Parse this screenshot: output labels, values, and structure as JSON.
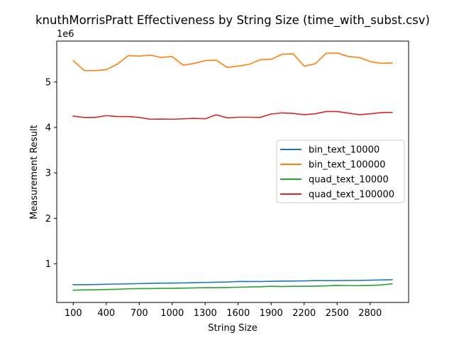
{
  "chart_data": {
    "type": "line",
    "title": "knuthMorrisPratt Effectiveness by String Size (time_with_subst.csv)",
    "xlabel": "String Size",
    "ylabel": "Measurement Result",
    "y_multiplier_label": "1e6",
    "xlim": [
      -50,
      3150
    ],
    "ylim": [
      150000,
      5900000
    ],
    "x_ticks": [
      100,
      400,
      700,
      1000,
      1300,
      1600,
      1900,
      2200,
      2500,
      2800
    ],
    "y_ticks": [
      1000000,
      2000000,
      3000000,
      4000000,
      5000000
    ],
    "y_tick_labels": [
      "1",
      "2",
      "3",
      "4",
      "5"
    ],
    "grid": false,
    "legend_position": "center-right",
    "x": [
      100,
      200,
      300,
      400,
      500,
      600,
      700,
      800,
      900,
      1000,
      1100,
      1200,
      1300,
      1400,
      1500,
      1600,
      1700,
      1800,
      1900,
      2000,
      2100,
      2200,
      2300,
      2400,
      2500,
      2600,
      2700,
      2800,
      2900,
      3000
    ],
    "series": [
      {
        "name": "bin_text_10000",
        "color": "#1f77b4",
        "values": [
          540000,
          540000,
          545000,
          550000,
          555000,
          560000,
          565000,
          570000,
          575000,
          575000,
          580000,
          585000,
          590000,
          595000,
          600000,
          610000,
          610000,
          610000,
          615000,
          620000,
          620000,
          625000,
          630000,
          630000,
          630000,
          635000,
          635000,
          640000,
          645000,
          650000
        ]
      },
      {
        "name": "bin_text_100000",
        "color": "#ff7f0e",
        "values": [
          5470000,
          5250000,
          5250000,
          5270000,
          5390000,
          5580000,
          5570000,
          5590000,
          5540000,
          5560000,
          5370000,
          5410000,
          5470000,
          5480000,
          5320000,
          5350000,
          5390000,
          5490000,
          5500000,
          5610000,
          5620000,
          5350000,
          5400000,
          5630000,
          5640000,
          5560000,
          5540000,
          5450000,
          5410000,
          5420000
        ]
      },
      {
        "name": "quad_text_10000",
        "color": "#2ca02c",
        "values": [
          420000,
          425000,
          430000,
          435000,
          440000,
          450000,
          455000,
          455000,
          460000,
          460000,
          465000,
          470000,
          475000,
          475000,
          480000,
          485000,
          490000,
          495000,
          505000,
          500000,
          505000,
          505000,
          510000,
          515000,
          525000,
          520000,
          520000,
          525000,
          535000,
          560000
        ]
      },
      {
        "name": "quad_text_100000",
        "color": "#d62728",
        "values": [
          4250000,
          4220000,
          4220000,
          4260000,
          4240000,
          4240000,
          4220000,
          4180000,
          4185000,
          4180000,
          4190000,
          4200000,
          4190000,
          4280000,
          4210000,
          4225000,
          4225000,
          4220000,
          4295000,
          4320000,
          4310000,
          4280000,
          4300000,
          4350000,
          4350000,
          4315000,
          4280000,
          4300000,
          4325000,
          4330000
        ]
      }
    ]
  }
}
